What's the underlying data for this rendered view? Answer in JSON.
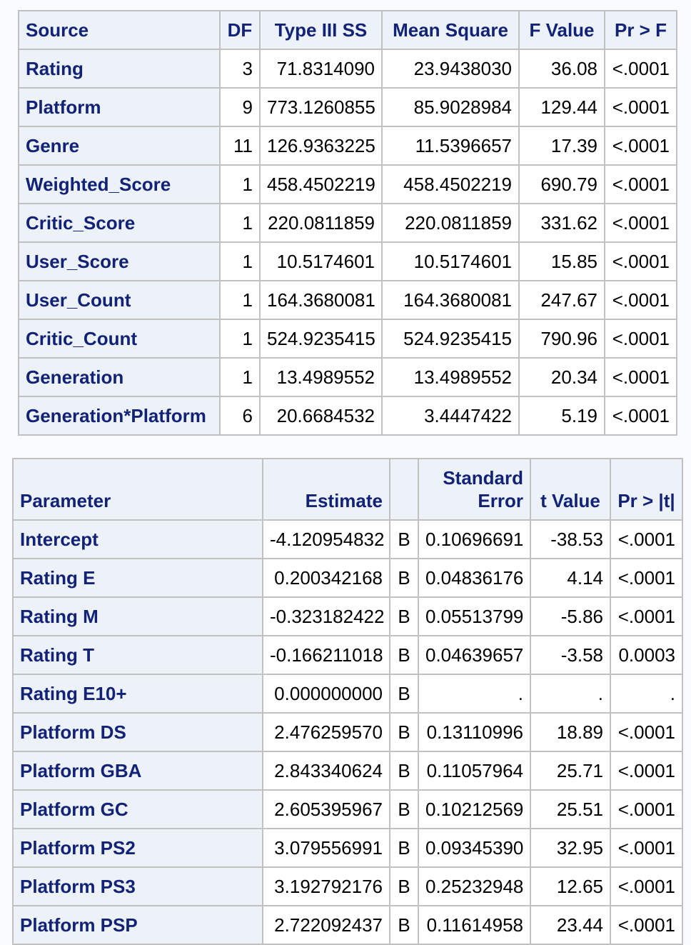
{
  "anova": {
    "headers": [
      "Source",
      "DF",
      "Type III SS",
      "Mean Square",
      "F Value",
      "Pr > F"
    ],
    "rows": [
      {
        "source": "Rating",
        "df": "3",
        "ss": "71.8314090",
        "ms": "23.9438030",
        "f": "36.08",
        "p": "<.0001"
      },
      {
        "source": "Platform",
        "df": "9",
        "ss": "773.1260855",
        "ms": "85.9028984",
        "f": "129.44",
        "p": "<.0001"
      },
      {
        "source": "Genre",
        "df": "11",
        "ss": "126.9363225",
        "ms": "11.5396657",
        "f": "17.39",
        "p": "<.0001"
      },
      {
        "source": "Weighted_Score",
        "df": "1",
        "ss": "458.4502219",
        "ms": "458.4502219",
        "f": "690.79",
        "p": "<.0001"
      },
      {
        "source": "Critic_Score",
        "df": "1",
        "ss": "220.0811859",
        "ms": "220.0811859",
        "f": "331.62",
        "p": "<.0001"
      },
      {
        "source": "User_Score",
        "df": "1",
        "ss": "10.5174601",
        "ms": "10.5174601",
        "f": "15.85",
        "p": "<.0001"
      },
      {
        "source": "User_Count",
        "df": "1",
        "ss": "164.3680081",
        "ms": "164.3680081",
        "f": "247.67",
        "p": "<.0001"
      },
      {
        "source": "Critic_Count",
        "df": "1",
        "ss": "524.9235415",
        "ms": "524.9235415",
        "f": "790.96",
        "p": "<.0001"
      },
      {
        "source": "Generation",
        "df": "1",
        "ss": "13.4989552",
        "ms": "13.4989552",
        "f": "20.34",
        "p": "<.0001"
      },
      {
        "source": "Generation*Platform",
        "df": "6",
        "ss": "20.6684532",
        "ms": "3.4447422",
        "f": "5.19",
        "p": "<.0001"
      }
    ]
  },
  "params": {
    "headers": {
      "parameter": "Parameter",
      "estimate": "Estimate",
      "flag": "",
      "se_line1": "Standard",
      "se_line2": "Error",
      "t": "t Value",
      "p": "Pr > |t|"
    },
    "rows": [
      {
        "name": "Intercept",
        "est": "-4.120954832",
        "flag": "B",
        "se": "0.10696691",
        "t": "-38.53",
        "p": "<.0001"
      },
      {
        "name": "Rating E",
        "est": "0.200342168",
        "flag": "B",
        "se": "0.04836176",
        "t": "4.14",
        "p": "<.0001"
      },
      {
        "name": "Rating M",
        "est": "-0.323182422",
        "flag": "B",
        "se": "0.05513799",
        "t": "-5.86",
        "p": "<.0001"
      },
      {
        "name": "Rating T",
        "est": "-0.166211018",
        "flag": "B",
        "se": "0.04639657",
        "t": "-3.58",
        "p": "0.0003"
      },
      {
        "name": "Rating E10+",
        "est": "0.000000000",
        "flag": "B",
        "se": ".",
        "t": ".",
        "p": "."
      },
      {
        "name": "Platform DS",
        "est": "2.476259570",
        "flag": "B",
        "se": "0.13110996",
        "t": "18.89",
        "p": "<.0001"
      },
      {
        "name": "Platform GBA",
        "est": "2.843340624",
        "flag": "B",
        "se": "0.11057964",
        "t": "25.71",
        "p": "<.0001"
      },
      {
        "name": "Platform GC",
        "est": "2.605395967",
        "flag": "B",
        "se": "0.10212569",
        "t": "25.51",
        "p": "<.0001"
      },
      {
        "name": "Platform PS2",
        "est": "3.079556991",
        "flag": "B",
        "se": "0.09345390",
        "t": "32.95",
        "p": "<.0001"
      },
      {
        "name": "Platform PS3",
        "est": "3.192792176",
        "flag": "B",
        "se": "0.25232948",
        "t": "12.65",
        "p": "<.0001"
      },
      {
        "name": "Platform PSP",
        "est": "2.722092437",
        "flag": "B",
        "se": "0.11614958",
        "t": "23.44",
        "p": "<.0001"
      }
    ]
  }
}
